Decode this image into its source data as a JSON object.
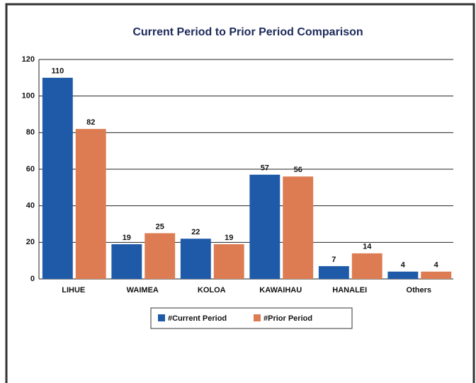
{
  "chart_data": {
    "type": "bar",
    "title": "Current Period to Prior Period Comparison",
    "categories": [
      "LIHUE",
      "WAIMEA",
      "KOLOA",
      "KAWAIHAU",
      "HANALEI",
      "Others"
    ],
    "series": [
      {
        "name": "#Current Period",
        "color": "#1f5aa8",
        "values": [
          110,
          19,
          22,
          57,
          7,
          4
        ]
      },
      {
        "name": "#Prior Period",
        "color": "#dd7c52",
        "values": [
          82,
          25,
          19,
          56,
          14,
          4
        ]
      }
    ],
    "ylim": [
      0,
      120
    ],
    "yticks": [
      0,
      20,
      40,
      60,
      80,
      100,
      120
    ],
    "grid": true,
    "legend": "bottom"
  }
}
